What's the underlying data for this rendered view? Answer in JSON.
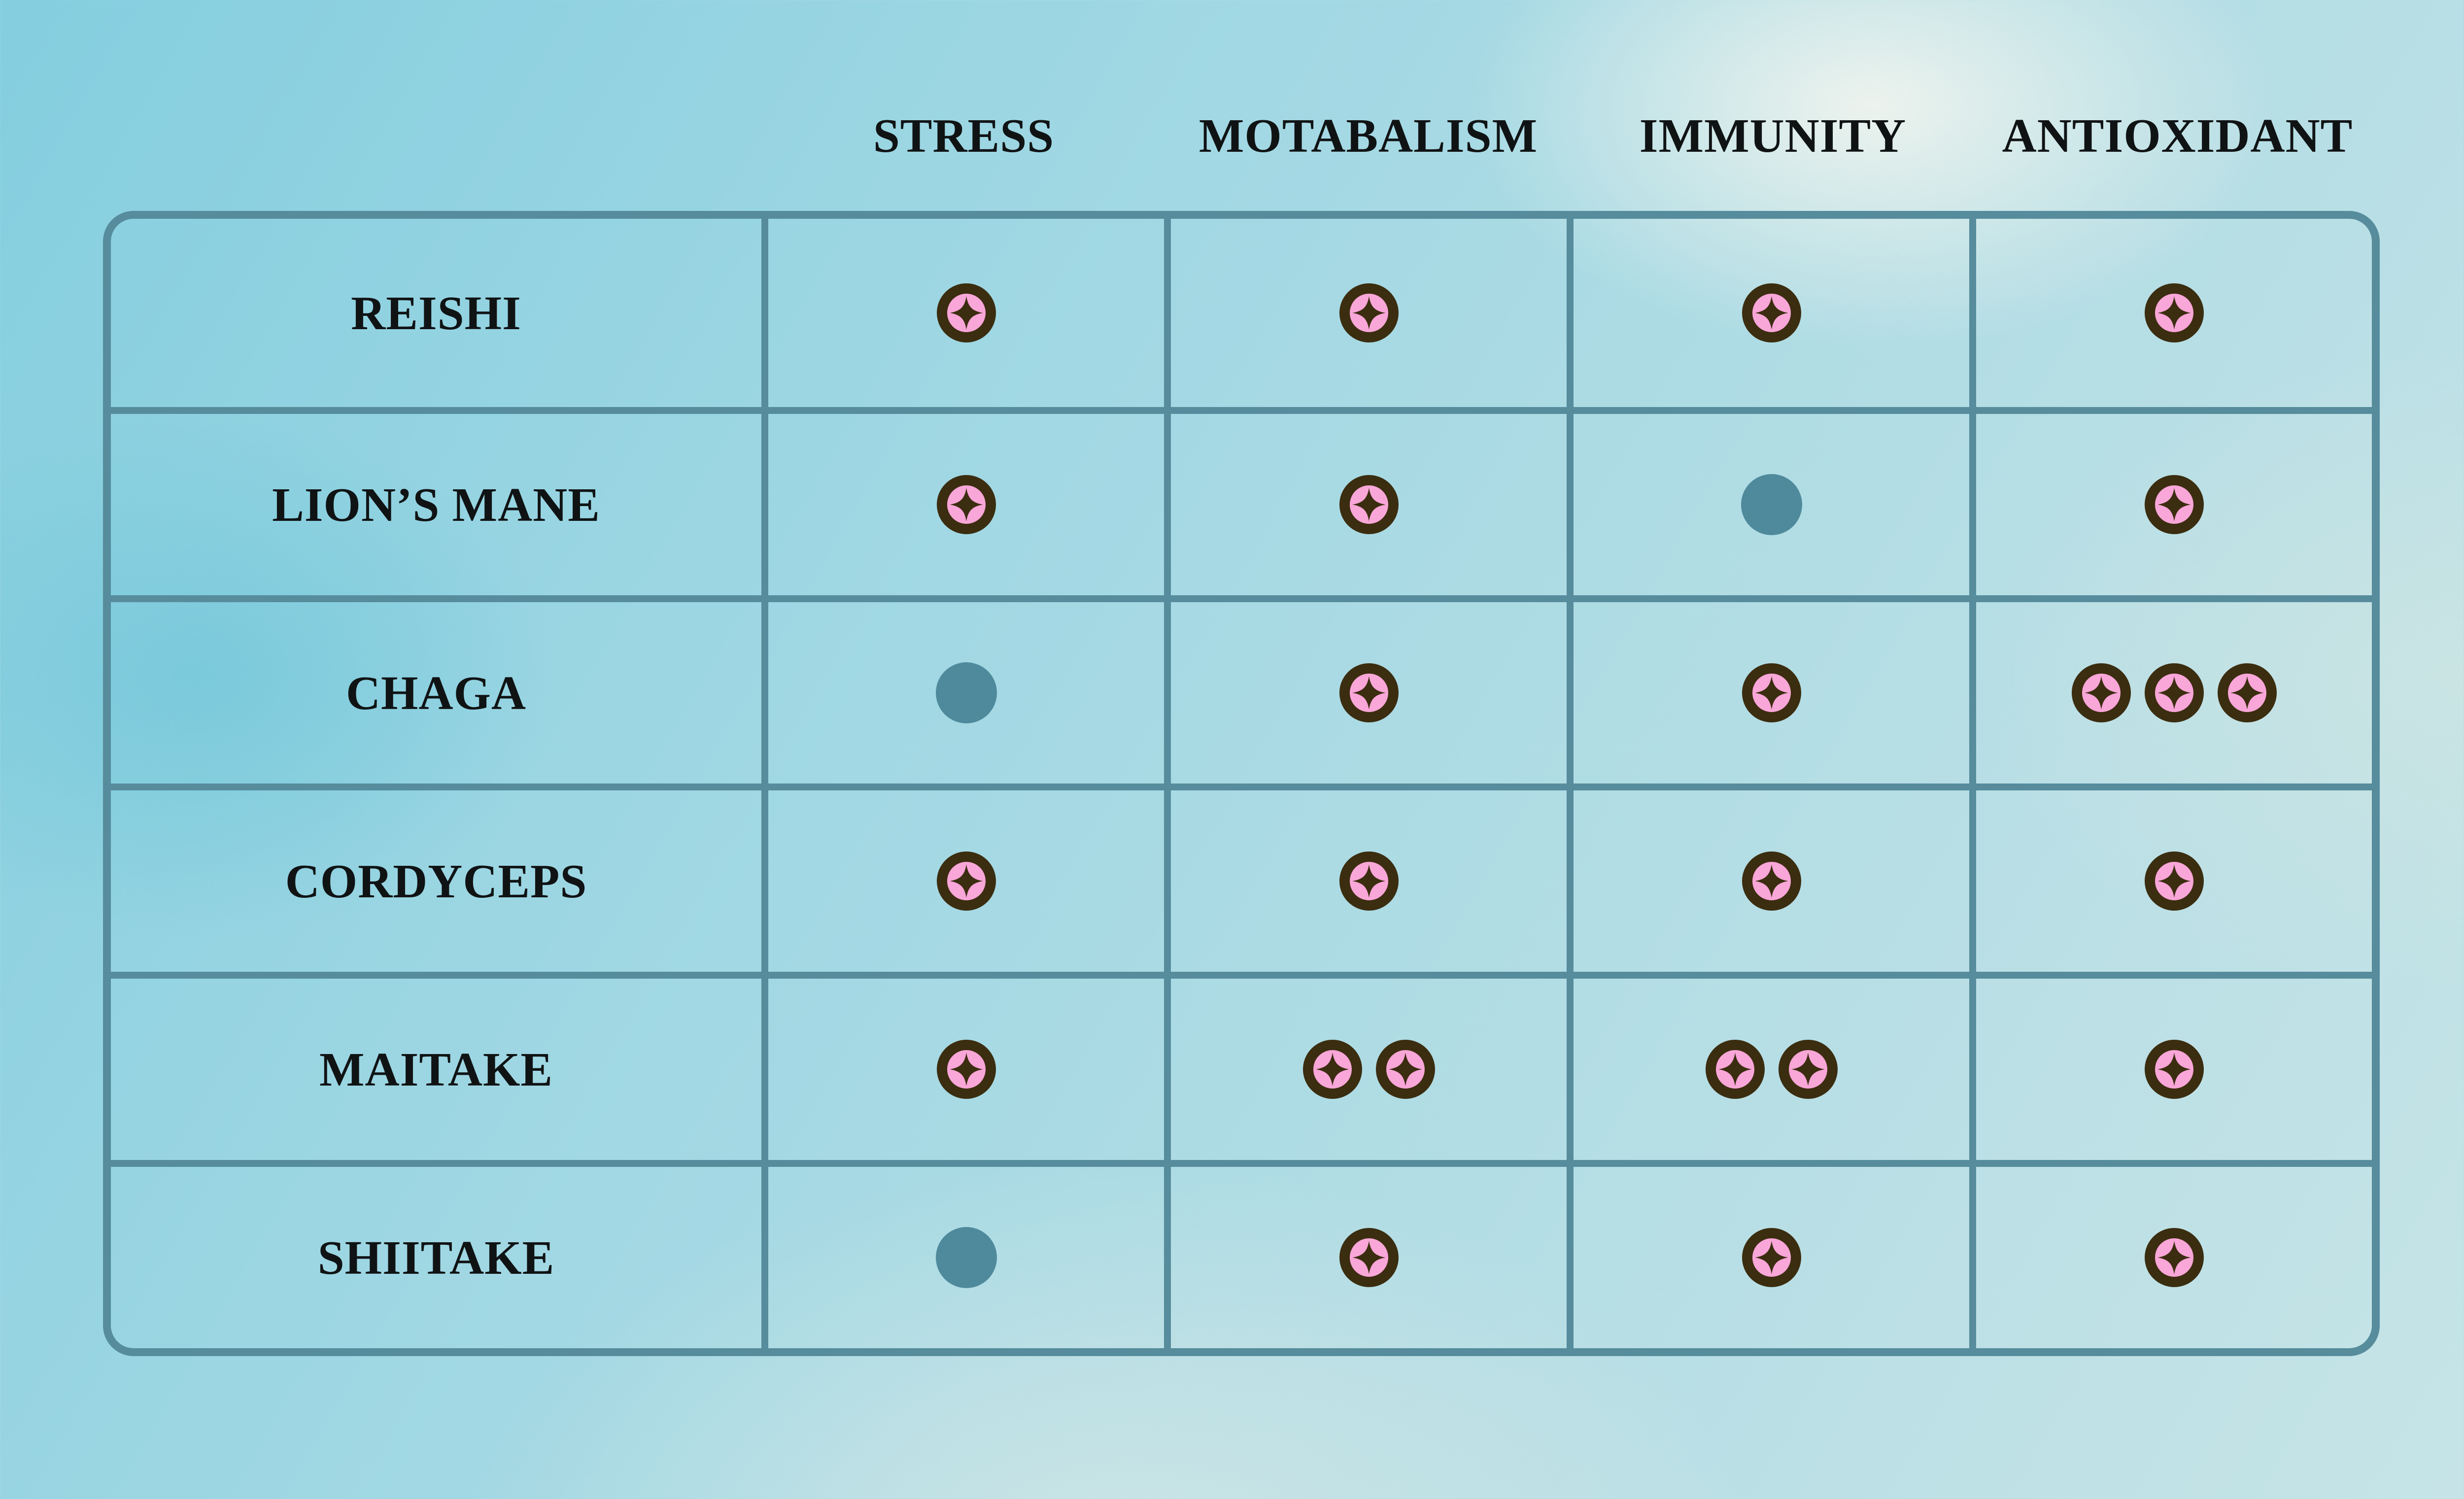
{
  "colors": {
    "line": "#568c9c",
    "ink": "#3b2d10",
    "pink": "#f9a6d8",
    "dot": "#4f8a9c",
    "text": "#101314"
  },
  "icons": {
    "star": "star-benefit-icon (pink circle with dark four-point sparkle)",
    "dot": "dot-neutral-icon (solid teal circle)"
  },
  "table": {
    "columns": [
      "STRESS",
      "MOTABALISM",
      "IMMUNITY",
      "ANTIOXIDANT"
    ],
    "rows": [
      {
        "label": "REISHI",
        "cells": [
          {
            "icon": "star",
            "count": 1
          },
          {
            "icon": "star",
            "count": 1
          },
          {
            "icon": "star",
            "count": 1
          },
          {
            "icon": "star",
            "count": 1
          }
        ]
      },
      {
        "label": "LION’S MANE",
        "cells": [
          {
            "icon": "star",
            "count": 1
          },
          {
            "icon": "star",
            "count": 1
          },
          {
            "icon": "dot",
            "count": 0
          },
          {
            "icon": "star",
            "count": 1
          }
        ]
      },
      {
        "label": "CHAGA",
        "cells": [
          {
            "icon": "dot",
            "count": 0
          },
          {
            "icon": "star",
            "count": 1
          },
          {
            "icon": "star",
            "count": 1
          },
          {
            "icon": "star",
            "count": 3
          }
        ]
      },
      {
        "label": "CORDYCEPS",
        "cells": [
          {
            "icon": "star",
            "count": 1
          },
          {
            "icon": "star",
            "count": 1
          },
          {
            "icon": "star",
            "count": 1
          },
          {
            "icon": "star",
            "count": 1
          }
        ]
      },
      {
        "label": "MAITAKE",
        "cells": [
          {
            "icon": "star",
            "count": 1
          },
          {
            "icon": "star",
            "count": 2
          },
          {
            "icon": "star",
            "count": 2
          },
          {
            "icon": "star",
            "count": 1
          }
        ]
      },
      {
        "label": "SHIITAKE",
        "cells": [
          {
            "icon": "dot",
            "count": 0
          },
          {
            "icon": "star",
            "count": 1
          },
          {
            "icon": "star",
            "count": 1
          },
          {
            "icon": "star",
            "count": 1
          }
        ]
      }
    ]
  },
  "chart_data": {
    "type": "table",
    "title": "",
    "columns": [
      "STRESS",
      "MOTABALISM",
      "IMMUNITY",
      "ANTIOXIDANT"
    ],
    "rows": [
      "REISHI",
      "LION’S MANE",
      "CHAGA",
      "CORDYCEPS",
      "MAITAKE",
      "SHIITAKE"
    ],
    "values": [
      [
        1,
        1,
        1,
        1
      ],
      [
        1,
        1,
        0,
        1
      ],
      [
        0,
        1,
        1,
        3
      ],
      [
        1,
        1,
        1,
        1
      ],
      [
        1,
        2,
        2,
        1
      ],
      [
        0,
        1,
        1,
        1
      ]
    ],
    "value_encoding": {
      "0": "teal dot = no / neutral benefit",
      "1-3": "number of sparkle badges = benefit strength"
    },
    "legend_position": "none",
    "grid": "on"
  }
}
